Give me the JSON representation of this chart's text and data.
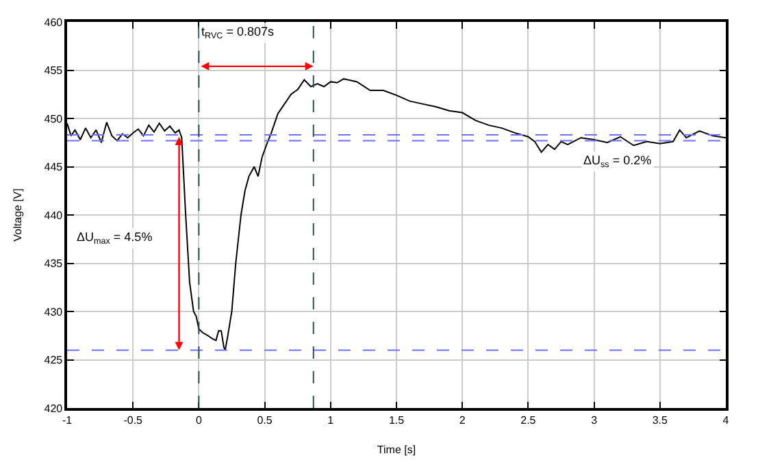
{
  "chart_data": {
    "type": "line",
    "xlabel": "Time [s]",
    "ylabel": "Voltage [V]",
    "xlim": [
      -1,
      4
    ],
    "ylim": [
      420,
      460
    ],
    "xticks": [
      -1,
      -0.5,
      0,
      0.5,
      1,
      1.5,
      2,
      2.5,
      3,
      3.5,
      4
    ],
    "yticks": [
      420,
      425,
      430,
      435,
      440,
      445,
      450,
      455,
      460
    ],
    "grid": true,
    "marker": "none",
    "line_style": "solid",
    "series": [
      {
        "color": "#000000",
        "x": [
          -1,
          -0.97,
          -0.94,
          -0.9,
          -0.86,
          -0.82,
          -0.78,
          -0.74,
          -0.7,
          -0.66,
          -0.62,
          -0.58,
          -0.54,
          -0.5,
          -0.46,
          -0.42,
          -0.38,
          -0.34,
          -0.3,
          -0.26,
          -0.22,
          -0.18,
          -0.15,
          -0.13,
          -0.1,
          -0.07,
          -0.04,
          -0.02,
          0,
          0.03,
          0.07,
          0.1,
          0.13,
          0.15,
          0.17,
          0.19,
          0.2,
          0.22,
          0.25,
          0.28,
          0.32,
          0.35,
          0.38,
          0.42,
          0.45,
          0.48,
          0.52,
          0.55,
          0.6,
          0.65,
          0.7,
          0.75,
          0.8,
          0.85,
          0.9,
          0.95,
          1.0,
          1.05,
          1.1,
          1.2,
          1.3,
          1.4,
          1.5,
          1.6,
          1.7,
          1.8,
          1.9,
          2.0,
          2.1,
          2.2,
          2.3,
          2.4,
          2.5,
          2.55,
          2.6,
          2.65,
          2.7,
          2.75,
          2.8,
          2.9,
          3.0,
          3.1,
          3.2,
          3.3,
          3.4,
          3.5,
          3.6,
          3.65,
          3.7,
          3.8,
          3.9,
          4.0
        ],
        "values": [
          449.5,
          448.2,
          448.8,
          447.8,
          449.0,
          448.0,
          448.8,
          447.5,
          449.6,
          448.2,
          447.7,
          448.4,
          448.0,
          448.5,
          448.9,
          448.2,
          449.3,
          448.6,
          449.5,
          448.7,
          449.2,
          448.5,
          448.8,
          448.0,
          440.0,
          433.0,
          430.0,
          429.5,
          428.2,
          427.8,
          427.5,
          427.2,
          427.0,
          428.0,
          428.0,
          426.3,
          426.0,
          427.5,
          430.0,
          435.0,
          440.0,
          442.5,
          444.0,
          445.0,
          444.0,
          446.0,
          447.5,
          448.5,
          450.5,
          451.5,
          452.5,
          453.0,
          454.0,
          453.3,
          453.6,
          453.3,
          453.8,
          453.7,
          454.1,
          453.8,
          452.9,
          452.9,
          452.4,
          451.8,
          451.5,
          451.2,
          450.8,
          450.6,
          449.8,
          449.3,
          449.0,
          448.5,
          448.1,
          447.6,
          446.5,
          447.3,
          446.8,
          447.6,
          447.3,
          448.0,
          447.8,
          447.5,
          448.1,
          447.2,
          447.6,
          447.4,
          447.6,
          448.8,
          448.0,
          448.7,
          448.2,
          448.0
        ]
      }
    ],
    "ref_lines": [
      {
        "axis": "y",
        "value": 448.3,
        "color": "#6f6fff",
        "line_style": "dashed"
      },
      {
        "axis": "y",
        "value": 447.7,
        "color": "#6f6fff",
        "line_style": "dashed"
      },
      {
        "axis": "y",
        "value": 426,
        "color": "#6f6fff",
        "line_style": "dashed"
      },
      {
        "axis": "x",
        "value": 0,
        "color": "#2f4f4f",
        "line_style": "dashed"
      },
      {
        "axis": "x",
        "value": 0.87,
        "color": "#2f4f4f",
        "line_style": "dashed"
      }
    ],
    "annotations": [
      "t$_{RVC}$ = 0.807s",
      "ΔU$_{max}$ = 4.5%",
      "ΔU$_{ss}$ = 0.2%"
    ]
  }
}
